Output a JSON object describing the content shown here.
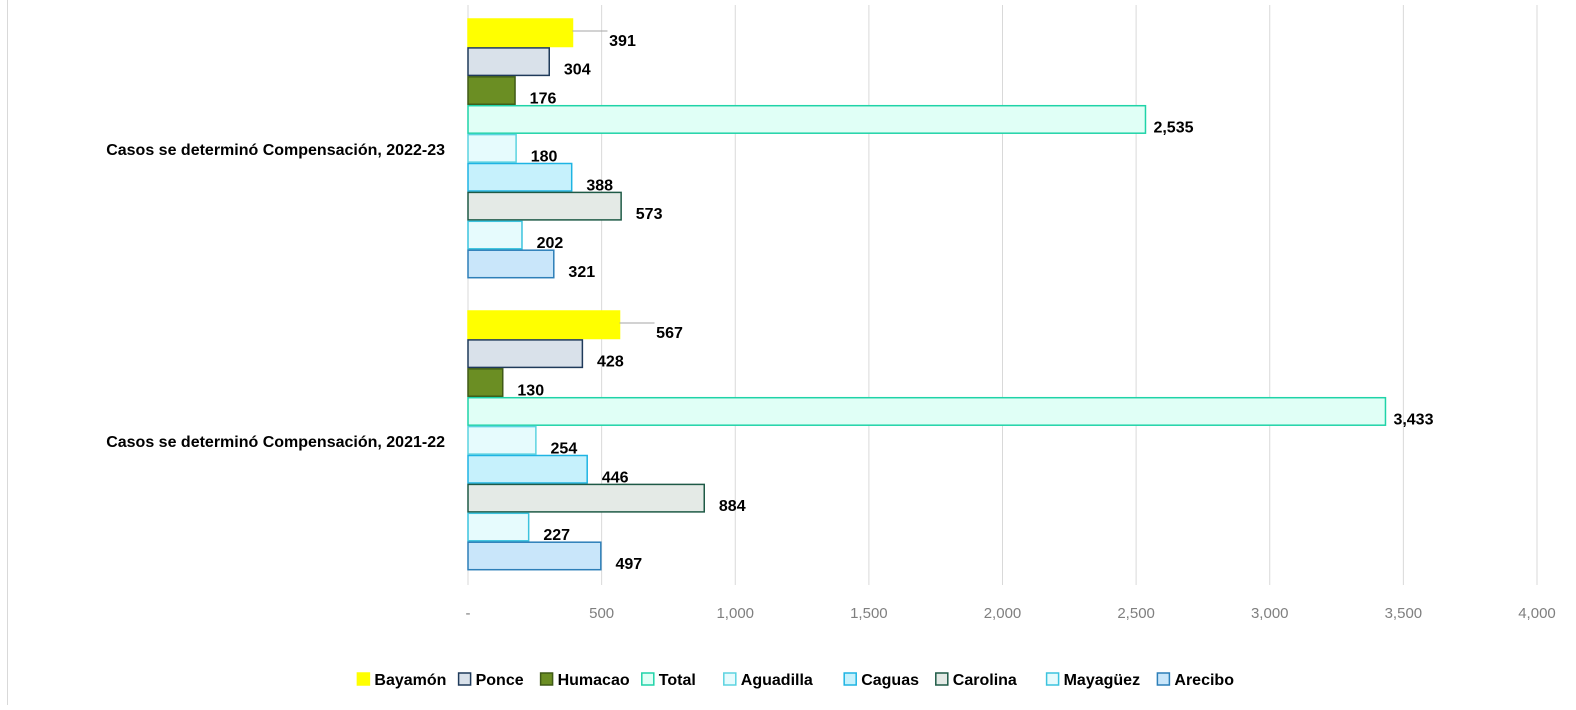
{
  "chart_data": {
    "type": "bar",
    "orientation": "horizontal",
    "title": "",
    "xlabel": "",
    "ylabel": "",
    "xlim": [
      0,
      4000
    ],
    "x_ticks": [
      0,
      500,
      1000,
      1500,
      2000,
      2500,
      3000,
      3500,
      4000
    ],
    "x_tick_labels": [
      "-",
      "500",
      "1,000",
      "1,500",
      "2,000",
      "2,500",
      "3,000",
      "3,500",
      "4,000"
    ],
    "grid": "vertical",
    "legend_position": "bottom",
    "categories": [
      "Casos se determinó Compensación, 2022-23",
      "Casos se determinó Compensación, 2021-22"
    ],
    "series": [
      {
        "name": "Bayamón",
        "values": [
          391,
          567
        ],
        "labels": [
          "391",
          "567"
        ],
        "fill": "#FFFF00",
        "stroke": "#FFFF00"
      },
      {
        "name": "Ponce",
        "values": [
          304,
          428
        ],
        "labels": [
          "304",
          "428"
        ],
        "fill": "#D9E1EA",
        "stroke": "#1F3A5A"
      },
      {
        "name": "Humacao",
        "values": [
          176,
          130
        ],
        "labels": [
          "176",
          "130"
        ],
        "fill": "#6B8E23",
        "stroke": "#3F5A16"
      },
      {
        "name": "Total",
        "values": [
          2535,
          3433
        ],
        "labels": [
          "2,535",
          "3,433"
        ],
        "fill": "#E0FFF6",
        "stroke": "#1FD3A8"
      },
      {
        "name": "Aguadilla",
        "values": [
          180,
          254
        ],
        "labels": [
          "180",
          "254"
        ],
        "fill": "#E6FBFD",
        "stroke": "#5BD3E0"
      },
      {
        "name": "Caguas",
        "values": [
          388,
          446
        ],
        "labels": [
          "388",
          "446"
        ],
        "fill": "#C6F1FC",
        "stroke": "#1EB4E3"
      },
      {
        "name": "Carolina",
        "values": [
          573,
          884
        ],
        "labels": [
          "573",
          "884"
        ],
        "fill": "#E4EAE6",
        "stroke": "#1E5A46"
      },
      {
        "name": "Mayagüez",
        "values": [
          202,
          227
        ],
        "labels": [
          "202",
          "227"
        ],
        "fill": "#E6FBFD",
        "stroke": "#3CC3DE"
      },
      {
        "name": "Arecibo",
        "values": [
          321,
          497
        ],
        "labels": [
          "321",
          "497"
        ],
        "fill": "#C9E6FA",
        "stroke": "#2D7FB8"
      }
    ]
  }
}
